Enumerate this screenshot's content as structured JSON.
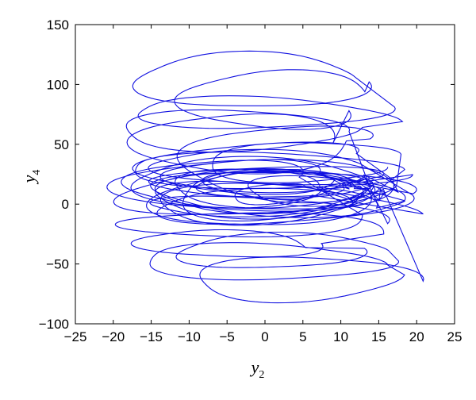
{
  "chart_data": {
    "type": "line",
    "xlabel": "y",
    "xlabel_sub": "2",
    "ylabel": "y",
    "ylabel_sub": "4",
    "xlim": [
      -25,
      25
    ],
    "ylim": [
      -100,
      150
    ],
    "xticks": [
      -25,
      -20,
      -15,
      -10,
      -5,
      0,
      5,
      10,
      15,
      20,
      25
    ],
    "yticks": [
      -100,
      -50,
      0,
      50,
      100,
      150
    ],
    "grid": false,
    "line_color": "#1010e0",
    "loops": [
      {
        "cx": 0,
        "cy": 10,
        "rx": 14,
        "ry": 18,
        "tilt": 0.05
      },
      {
        "cx": -1,
        "cy": 15,
        "rx": 12,
        "ry": 15,
        "tilt": -0.08
      },
      {
        "cx": 2,
        "cy": 5,
        "rx": 13,
        "ry": 22,
        "tilt": 0.12
      },
      {
        "cx": -2,
        "cy": 20,
        "rx": 16,
        "ry": 20,
        "tilt": -0.05
      },
      {
        "cx": 1,
        "cy": 0,
        "rx": 15,
        "ry": 25,
        "tilt": 0.1
      },
      {
        "cx": -3,
        "cy": 25,
        "rx": 11,
        "ry": 13,
        "tilt": 0.02
      },
      {
        "cx": 3,
        "cy": 12,
        "rx": 17,
        "ry": 17,
        "tilt": -0.1
      },
      {
        "cx": 0,
        "cy": -5,
        "rx": 14,
        "ry": 20,
        "tilt": 0.06
      },
      {
        "cx": -1,
        "cy": 30,
        "rx": 18,
        "ry": 14,
        "tilt": -0.03
      },
      {
        "cx": 2,
        "cy": 18,
        "rx": 10,
        "ry": 10,
        "tilt": 0.0
      },
      {
        "cx": -4,
        "cy": 8,
        "rx": 16,
        "ry": 19,
        "tilt": 0.15
      },
      {
        "cx": 0,
        "cy": 15,
        "rx": 8,
        "ry": 12,
        "tilt": -0.2
      },
      {
        "cx": 1,
        "cy": 22,
        "rx": 15,
        "ry": 11,
        "tilt": 0.04
      },
      {
        "cx": -2,
        "cy": 2,
        "rx": 13,
        "ry": 16,
        "tilt": -0.12
      },
      {
        "cx": 0,
        "cy": 12,
        "rx": 5,
        "ry": 6,
        "tilt": 0.3
      },
      {
        "cx": 3,
        "cy": -10,
        "rx": 17,
        "ry": 18,
        "tilt": 0.05
      },
      {
        "cx": -1,
        "cy": 35,
        "rx": 14,
        "ry": 12,
        "tilt": -0.06
      },
      {
        "cx": 0,
        "cy": 10,
        "rx": 19,
        "ry": 24,
        "tilt": 0.0
      },
      {
        "cx": -2,
        "cy": 40,
        "rx": 15,
        "ry": 15,
        "tilt": 0.08
      },
      {
        "cx": 1,
        "cy": -15,
        "rx": 15,
        "ry": 14,
        "tilt": -0.04
      },
      {
        "cx": -5,
        "cy": 60,
        "rx": 15,
        "ry": 18,
        "tilt": 0.02
      },
      {
        "cx": 0,
        "cy": 70,
        "rx": 17,
        "ry": 16,
        "tilt": -0.03
      },
      {
        "cx": -3,
        "cy": 105,
        "rx": 15,
        "ry": 22,
        "tilt": 0.02
      },
      {
        "cx": 2,
        "cy": 95,
        "rx": 12,
        "ry": 20,
        "tilt": -0.05
      },
      {
        "cx": -4,
        "cy": 50,
        "rx": 14,
        "ry": 25,
        "tilt": 0.04
      },
      {
        "cx": 1,
        "cy": 55,
        "rx": 13,
        "ry": 20,
        "tilt": -0.02
      },
      {
        "cx": 6,
        "cy": -65,
        "rx": 14,
        "ry": 20,
        "tilt": 0.02
      },
      {
        "cx": -1,
        "cy": -50,
        "rx": 16,
        "ry": 16,
        "tilt": -0.03
      },
      {
        "cx": 3,
        "cy": -40,
        "rx": 13,
        "ry": 15,
        "tilt": 0.05
      },
      {
        "cx": -6,
        "cy": -35,
        "rx": 12,
        "ry": 12,
        "tilt": -0.06
      },
      {
        "cx": 0,
        "cy": -25,
        "rx": 17,
        "ry": 14,
        "tilt": 0.0
      },
      {
        "cx": -8,
        "cy": 20,
        "rx": 13,
        "ry": 18,
        "tilt": 0.1
      },
      {
        "cx": 8,
        "cy": 5,
        "rx": 10,
        "ry": 15,
        "tilt": -0.1
      },
      {
        "cx": 5,
        "cy": 40,
        "rx": 12,
        "ry": 14,
        "tilt": 0.06
      }
    ]
  }
}
